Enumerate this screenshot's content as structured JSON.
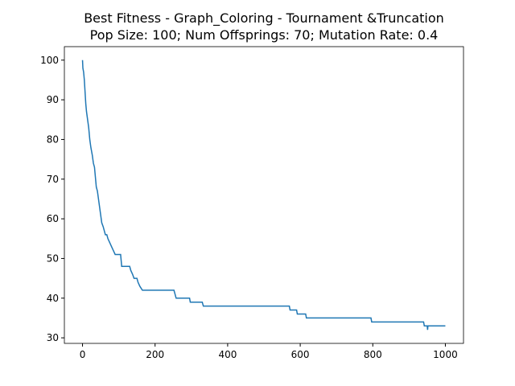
{
  "chart_data": {
    "type": "line",
    "title": "Best Fitness - Graph_Coloring - Tournament &Truncation",
    "subtitle": "Pop Size: 100; Num Offsprings: 70; Mutation Rate: 0.4",
    "x": [
      0,
      1,
      3,
      5,
      7,
      9,
      11,
      14,
      17,
      20,
      23,
      27,
      30,
      33,
      36,
      38,
      41,
      44,
      47,
      50,
      53,
      57,
      60,
      63,
      67,
      70,
      75,
      80,
      85,
      90,
      105,
      108,
      130,
      133,
      138,
      142,
      150,
      153,
      158,
      165,
      252,
      255,
      258,
      295,
      297,
      330,
      333,
      570,
      572,
      590,
      592,
      615,
      617,
      795,
      797,
      940,
      942,
      950,
      951,
      952,
      1000
    ],
    "series": [
      {
        "color": "#1f77b4",
        "values": [
          100,
          98,
          97,
          95,
          92,
          89,
          87,
          85,
          83,
          80,
          78,
          76,
          74,
          73,
          70,
          68,
          67,
          65,
          63,
          61,
          59,
          58,
          57,
          56,
          56,
          55,
          54,
          53,
          52,
          51,
          51,
          48,
          48,
          47,
          46,
          45,
          45,
          44,
          43,
          42,
          42,
          41,
          40,
          40,
          39,
          39,
          38,
          38,
          37,
          37,
          36,
          36,
          35,
          35,
          34,
          34,
          33,
          33,
          32,
          33,
          33
        ]
      }
    ],
    "xlim": [
      -50,
      1050
    ],
    "ylim": [
      28.6,
      103.4
    ],
    "xticks": [
      0,
      200,
      400,
      600,
      800,
      1000
    ],
    "yticks": [
      30,
      40,
      50,
      60,
      70,
      80,
      90,
      100
    ]
  }
}
